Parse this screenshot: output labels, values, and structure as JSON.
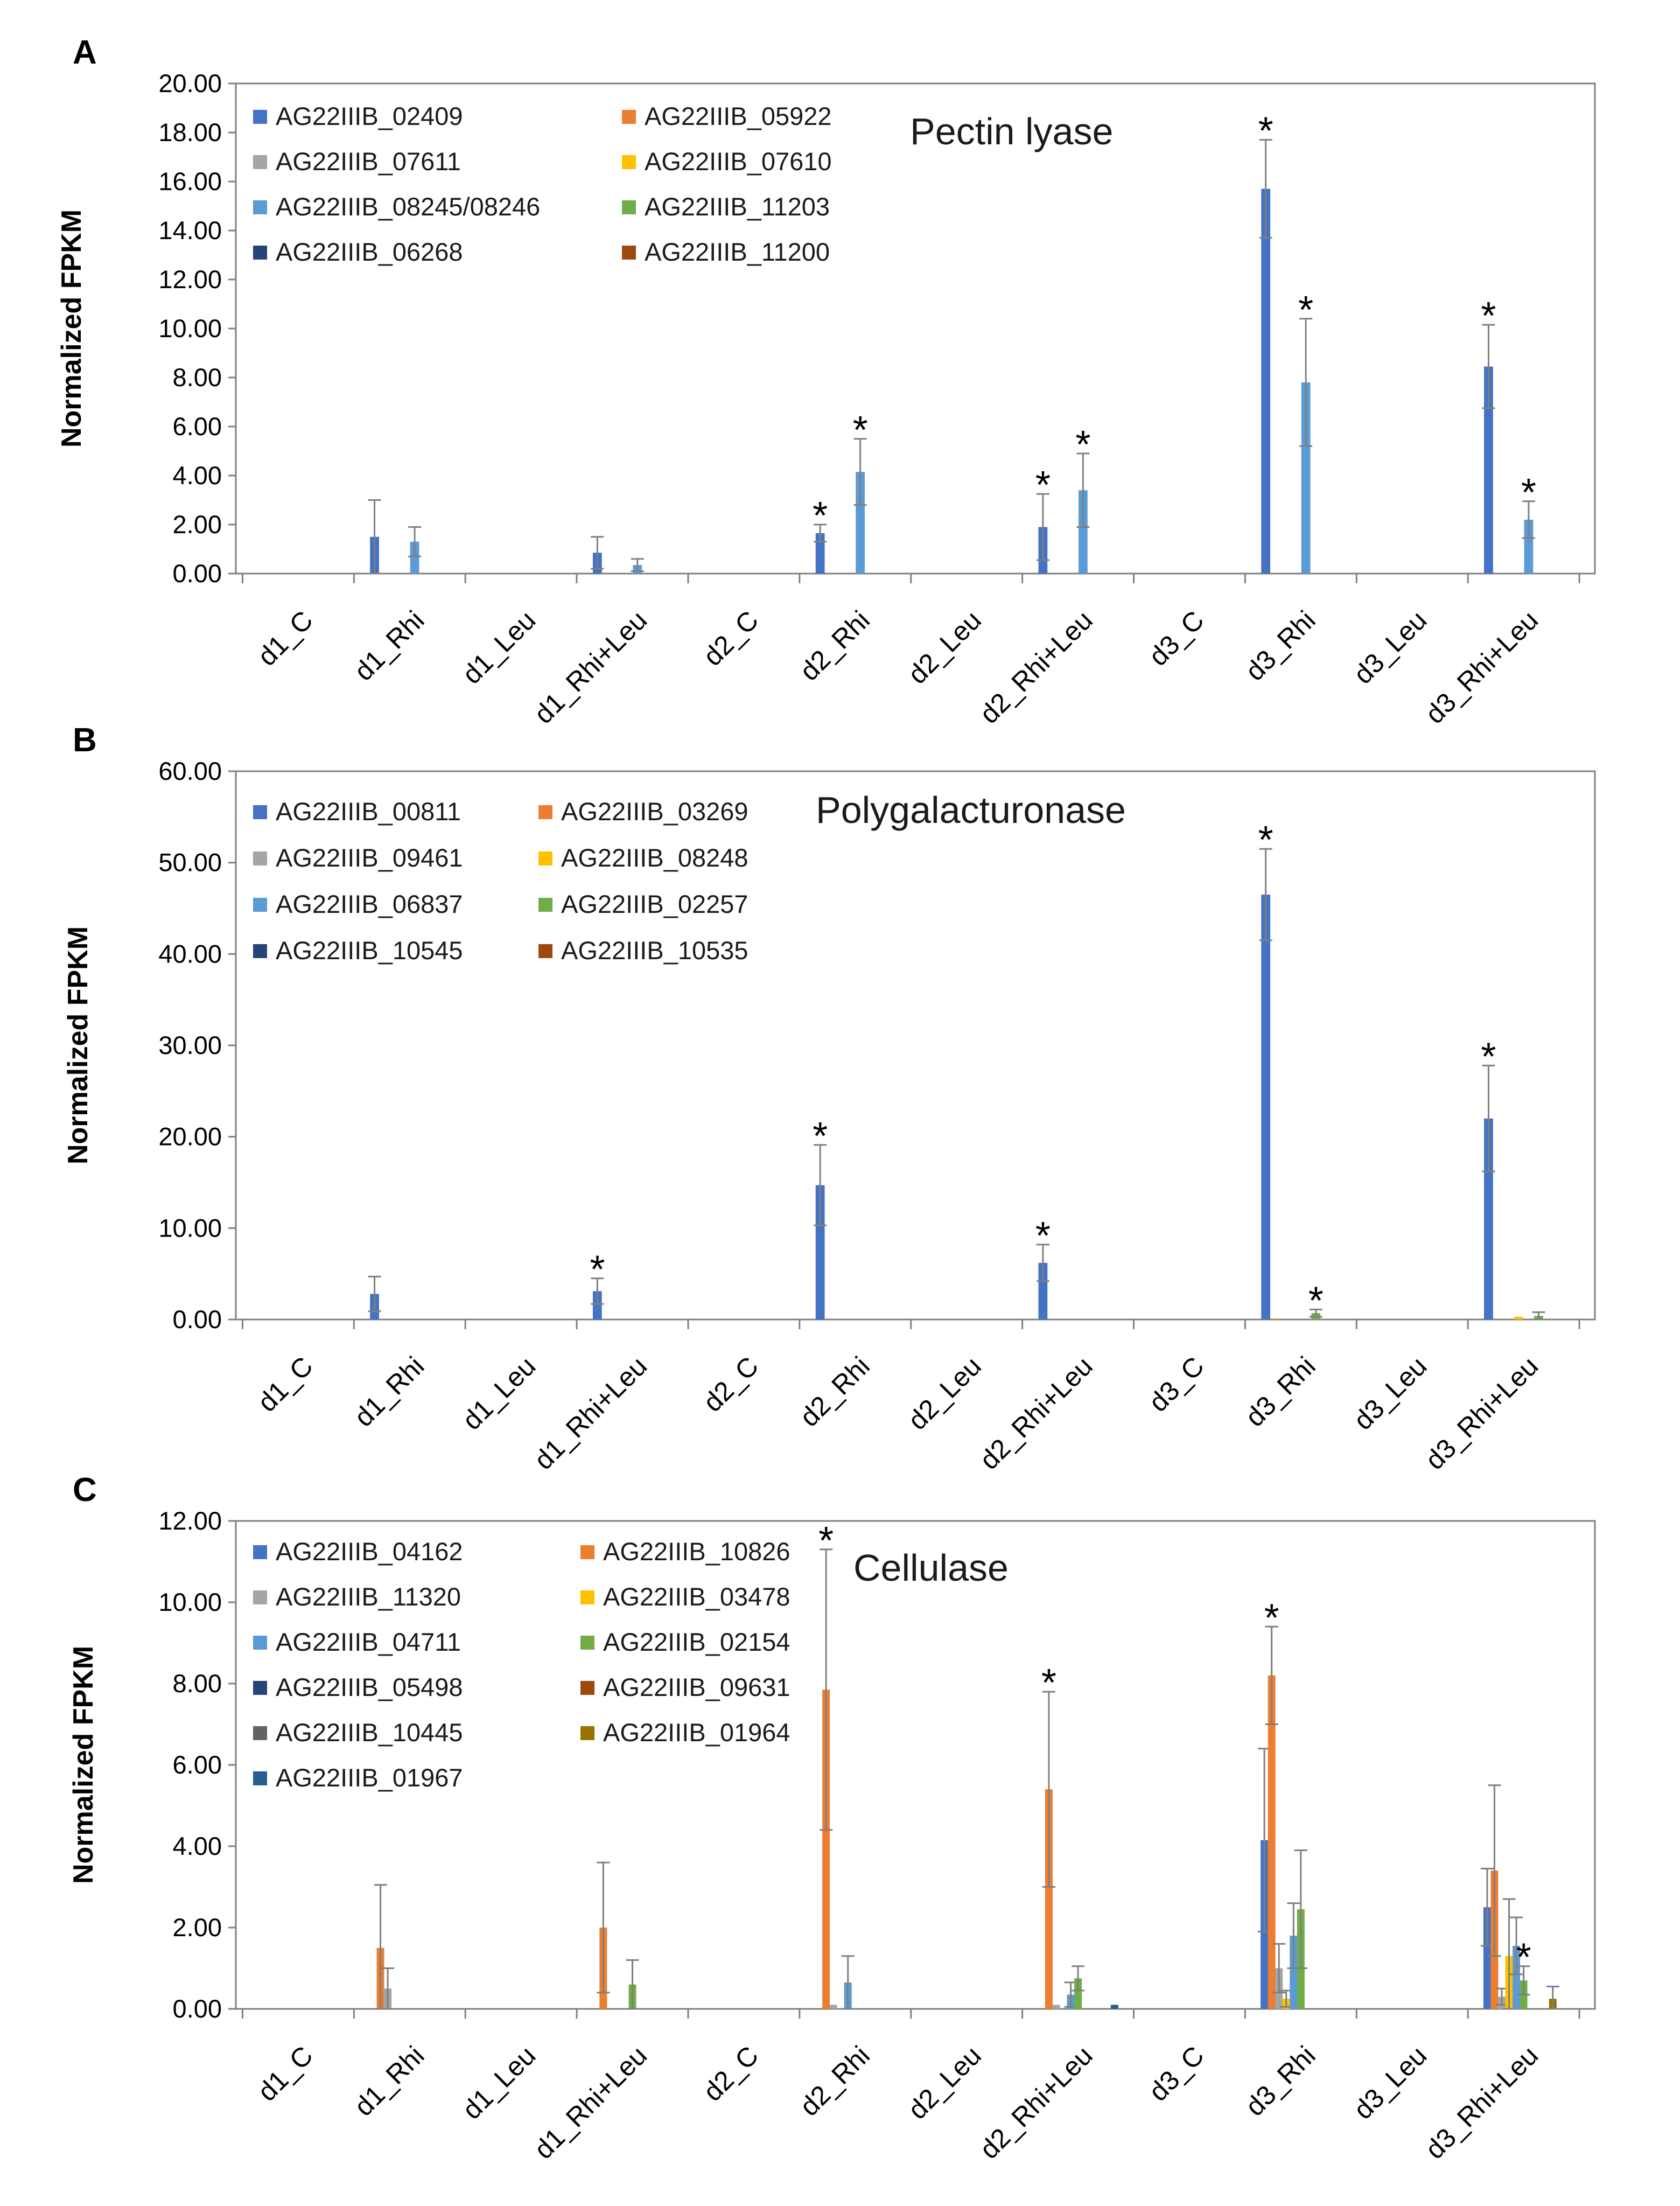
{
  "chart_data": [
    {
      "type": "bar",
      "panel": "A",
      "title": "Pectin lyase",
      "ylabel": "Normalized FPKM",
      "xlabel": "",
      "ylim": [
        0,
        20
      ],
      "yticks": [
        "0.00",
        "2.00",
        "4.00",
        "6.00",
        "8.00",
        "10.00",
        "12.00",
        "14.00",
        "16.00",
        "18.00",
        "20.00"
      ],
      "categories": [
        "d1_C",
        "d1_Rhi",
        "d1_Leu",
        "d1_Rhi+Leu",
        "d2_C",
        "d2_Rhi",
        "d2_Leu",
        "d2_Rhi+Leu",
        "d3_C",
        "d3_Rhi",
        "d3_Leu",
        "d3_Rhi+Leu"
      ],
      "legend_placement": "top-left",
      "series": [
        {
          "name": "AG22IIIB_02409",
          "color": "#4472C4",
          "values": [
            0,
            1.5,
            0,
            0.85,
            0,
            1.65,
            0,
            1.9,
            0,
            15.7,
            0,
            8.45
          ],
          "errors": [
            0,
            1.5,
            0,
            0.65,
            0,
            0.35,
            0,
            1.35,
            0,
            2.0,
            0,
            1.7
          ],
          "sig": [
            false,
            false,
            false,
            false,
            false,
            true,
            false,
            true,
            false,
            true,
            false,
            true
          ]
        },
        {
          "name": "AG22IIIB_05922",
          "color": "#ED7D31",
          "values": [
            0,
            0,
            0,
            0,
            0,
            0,
            0,
            0,
            0,
            0,
            0,
            0
          ]
        },
        {
          "name": "AG22IIIB_07611",
          "color": "#A5A5A5",
          "values": [
            0,
            0,
            0,
            0,
            0,
            0,
            0,
            0,
            0,
            0,
            0,
            0
          ]
        },
        {
          "name": "AG22IIIB_07610",
          "color": "#FFC000",
          "values": [
            0,
            0,
            0,
            0,
            0,
            0,
            0,
            0,
            0,
            0,
            0,
            0
          ]
        },
        {
          "name": "AG22IIIB_08245/08246",
          "color": "#5B9BD5",
          "values": [
            0,
            1.3,
            0,
            0.35,
            0,
            4.15,
            0,
            3.4,
            0,
            7.8,
            0,
            2.2
          ],
          "errors": [
            0,
            0.6,
            0,
            0.25,
            0,
            1.35,
            0,
            1.5,
            0,
            2.6,
            0,
            0.75
          ],
          "sig": [
            false,
            false,
            false,
            false,
            false,
            true,
            false,
            true,
            false,
            true,
            false,
            true
          ]
        },
        {
          "name": "AG22IIIB_11203",
          "color": "#70AD47",
          "values": [
            0,
            0,
            0,
            0,
            0,
            0,
            0,
            0,
            0,
            0,
            0,
            0
          ]
        },
        {
          "name": "AG22IIIB_06268",
          "color": "#264478",
          "values": [
            0,
            0,
            0,
            0,
            0,
            0,
            0,
            0,
            0,
            0,
            0,
            0
          ]
        },
        {
          "name": "AG22IIIB_11200",
          "color": "#9E480E",
          "values": [
            0,
            0,
            0,
            0,
            0,
            0,
            0,
            0,
            0,
            0,
            0,
            0
          ]
        }
      ]
    },
    {
      "type": "bar",
      "panel": "B",
      "title": "Polygalacturonase",
      "ylabel": "Normalized FPKM",
      "xlabel": "",
      "ylim": [
        0,
        60
      ],
      "yticks": [
        "0.00",
        "10.00",
        "20.00",
        "30.00",
        "40.00",
        "50.00",
        "60.00"
      ],
      "categories": [
        "d1_C",
        "d1_Rhi",
        "d1_Leu",
        "d1_Rhi+Leu",
        "d2_C",
        "d2_Rhi",
        "d2_Leu",
        "d2_Rhi+Leu",
        "d3_C",
        "d3_Rhi",
        "d3_Leu",
        "d3_Rhi+Leu"
      ],
      "legend_placement": "top-left",
      "series": [
        {
          "name": "AG22IIIB_00811",
          "color": "#4472C4",
          "values": [
            0,
            2.8,
            0,
            3.1,
            0,
            14.7,
            0,
            6.2,
            0,
            46.5,
            0,
            22.0
          ],
          "errors": [
            0,
            1.9,
            0,
            1.4,
            0,
            4.4,
            0,
            2.0,
            0,
            5.0,
            0,
            5.8
          ],
          "sig": [
            false,
            false,
            false,
            true,
            false,
            true,
            false,
            true,
            false,
            true,
            false,
            true
          ]
        },
        {
          "name": "AG22IIIB_03269",
          "color": "#ED7D31",
          "values": [
            0,
            0,
            0,
            0,
            0,
            0,
            0,
            0,
            0,
            0.1,
            0,
            0
          ]
        },
        {
          "name": "AG22IIIB_09461",
          "color": "#A5A5A5",
          "values": [
            0,
            0,
            0,
            0,
            0,
            0,
            0,
            0,
            0,
            0,
            0,
            0
          ]
        },
        {
          "name": "AG22IIIB_08248",
          "color": "#FFC000",
          "values": [
            0,
            0,
            0,
            0,
            0,
            0,
            0,
            0,
            0,
            0,
            0,
            0.3
          ]
        },
        {
          "name": "AG22IIIB_06837",
          "color": "#5B9BD5",
          "values": [
            0,
            0,
            0,
            0,
            0,
            0,
            0,
            0,
            0,
            0,
            0,
            0
          ]
        },
        {
          "name": "AG22IIIB_02257",
          "color": "#70AD47",
          "values": [
            0,
            0,
            0,
            0,
            0,
            0,
            0,
            0,
            0,
            0.7,
            0,
            0.4
          ],
          "errors": [
            0,
            0,
            0,
            0,
            0,
            0,
            0,
            0,
            0,
            0.4,
            0,
            0.4
          ],
          "sig": [
            false,
            false,
            false,
            false,
            false,
            false,
            false,
            false,
            false,
            true,
            false,
            false
          ]
        },
        {
          "name": "AG22IIIB_10545",
          "color": "#264478",
          "values": [
            0,
            0,
            0,
            0,
            0,
            0,
            0,
            0,
            0,
            0,
            0,
            0
          ]
        },
        {
          "name": "AG22IIIB_10535",
          "color": "#9E480E",
          "values": [
            0,
            0,
            0,
            0,
            0,
            0,
            0,
            0,
            0,
            0,
            0,
            0
          ]
        }
      ]
    },
    {
      "type": "bar",
      "panel": "C",
      "title": "Cellulase",
      "ylabel": "Normalized FPKM",
      "xlabel": "",
      "ylim": [
        0,
        12
      ],
      "yticks": [
        "0.00",
        "2.00",
        "4.00",
        "6.00",
        "8.00",
        "10.00",
        "12.00"
      ],
      "categories": [
        "d1_C",
        "d1_Rhi",
        "d1_Leu",
        "d1_Rhi+Leu",
        "d2_C",
        "d2_Rhi",
        "d2_Leu",
        "d2_Rhi+Leu",
        "d3_C",
        "d3_Rhi",
        "d3_Leu",
        "d3_Rhi+Leu"
      ],
      "legend_placement": "top-left",
      "series": [
        {
          "name": "AG22IIIB_04162",
          "color": "#4472C4",
          "values": [
            0,
            0,
            0,
            0,
            0,
            0,
            0,
            0,
            0,
            4.15,
            0,
            2.5
          ],
          "errors": [
            0,
            0,
            0,
            0,
            0,
            0,
            0,
            0,
            0,
            2.25,
            0,
            0.95
          ]
        },
        {
          "name": "AG22IIIB_10826",
          "color": "#ED7D31",
          "values": [
            0,
            1.5,
            0,
            2.0,
            0,
            7.85,
            0,
            5.4,
            0,
            8.2,
            0,
            3.4
          ],
          "errors": [
            0,
            1.55,
            0,
            1.6,
            0,
            3.45,
            0,
            2.4,
            0,
            1.2,
            0,
            2.1
          ],
          "sig": [
            false,
            false,
            false,
            false,
            false,
            true,
            false,
            true,
            false,
            true,
            false,
            false
          ]
        },
        {
          "name": "AG22IIIB_11320",
          "color": "#A5A5A5",
          "values": [
            0,
            0.5,
            0,
            0,
            0,
            0.1,
            0,
            0.1,
            0,
            1.0,
            0,
            0.3
          ],
          "errors": [
            0,
            0.5,
            0,
            0,
            0,
            0,
            0,
            0,
            0,
            0.6,
            0,
            0.2
          ]
        },
        {
          "name": "AG22IIIB_03478",
          "color": "#FFC000",
          "values": [
            0,
            0,
            0,
            0,
            0,
            0,
            0,
            0,
            0,
            0.25,
            0,
            1.3
          ],
          "errors": [
            0,
            0,
            0,
            0,
            0,
            0,
            0,
            0,
            0,
            0.2,
            0,
            1.4
          ]
        },
        {
          "name": "AG22IIIB_04711",
          "color": "#5B9BD5",
          "values": [
            0,
            0,
            0,
            0,
            0,
            0.65,
            0,
            0.35,
            0,
            1.8,
            0,
            1.55
          ],
          "errors": [
            0,
            0,
            0,
            0,
            0,
            0.65,
            0,
            0.3,
            0,
            0.8,
            0,
            0.7
          ]
        },
        {
          "name": "AG22IIIB_02154",
          "color": "#70AD47",
          "values": [
            0,
            0,
            0,
            0.6,
            0,
            0,
            0,
            0.75,
            0,
            2.45,
            0,
            0.7
          ],
          "errors": [
            0,
            0,
            0,
            0.6,
            0,
            0,
            0,
            0.3,
            0,
            1.45,
            0,
            0.35
          ],
          "sig": [
            false,
            false,
            false,
            false,
            false,
            false,
            false,
            false,
            false,
            false,
            false,
            true
          ]
        },
        {
          "name": "AG22IIIB_05498",
          "color": "#264478",
          "values": [
            0,
            0,
            0,
            0,
            0,
            0,
            0,
            0,
            0,
            0,
            0,
            0
          ]
        },
        {
          "name": "AG22IIIB_09631",
          "color": "#9E480E",
          "values": [
            0,
            0,
            0,
            0,
            0,
            0,
            0,
            0,
            0,
            0,
            0,
            0
          ]
        },
        {
          "name": "AG22IIIB_10445",
          "color": "#636363",
          "values": [
            0,
            0,
            0,
            0,
            0,
            0,
            0,
            0,
            0,
            0,
            0,
            0
          ]
        },
        {
          "name": "AG22IIIB_01964",
          "color": "#997300",
          "values": [
            0,
            0,
            0,
            0,
            0,
            0,
            0,
            0,
            0,
            0,
            0,
            0.25
          ],
          "errors": [
            0,
            0,
            0,
            0,
            0,
            0,
            0,
            0,
            0,
            0,
            0,
            0.3
          ]
        },
        {
          "name": "AG22IIIB_01967",
          "color": "#255E91",
          "values": [
            0,
            0,
            0,
            0,
            0,
            0,
            0,
            0.1,
            0,
            0,
            0,
            0
          ]
        }
      ]
    }
  ]
}
